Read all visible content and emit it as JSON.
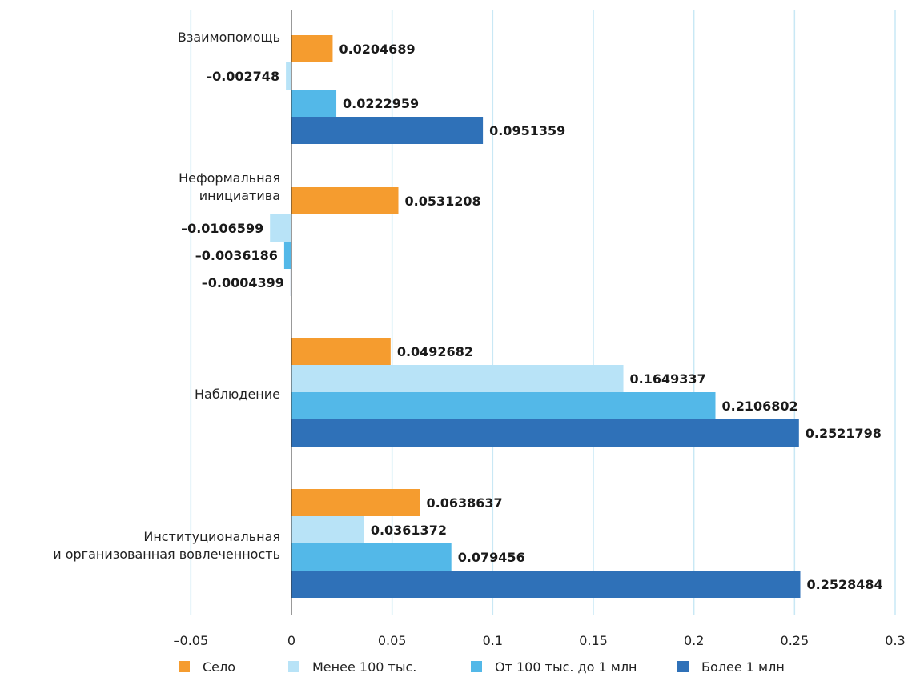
{
  "chart_data": {
    "type": "bar",
    "orientation": "horizontal",
    "categories": [
      [
        "Взаимопомощь"
      ],
      [
        "Неформальная",
        "инициатива"
      ],
      [
        "Наблюдение"
      ],
      [
        "Институциональная",
        "и организованная вовлеченность"
      ]
    ],
    "series": [
      {
        "name": "Село",
        "color": "#f59c2f",
        "values": [
          0.0204689,
          0.0531208,
          0.0492682,
          0.0638637
        ],
        "labels": [
          "0.0204689",
          "0.0531208",
          "0.0492682",
          "0.0638637"
        ]
      },
      {
        "name": "Менее 100 тыс.",
        "color": "#b8e3f7",
        "values": [
          -0.002748,
          -0.0106599,
          0.1649337,
          0.0361372
        ],
        "labels": [
          "–0.002748",
          "–0.0106599",
          "0.1649337",
          "0.0361372"
        ]
      },
      {
        "name": "От 100 тыс. до 1 млн",
        "color": "#53b8e8",
        "values": [
          0.0222959,
          -0.0036186,
          0.2106802,
          0.079456
        ],
        "labels": [
          "0.0222959",
          "–0.0036186",
          "0.2106802",
          "0.079456"
        ]
      },
      {
        "name": "Более 1 млн",
        "color": "#2f71b8",
        "values": [
          0.0951359,
          -0.0004399,
          0.2521798,
          0.2528484
        ],
        "labels": [
          "0.0951359",
          "–0.0004399",
          "0.2521798",
          "0.2528484"
        ]
      }
    ],
    "xlim": [
      -0.05,
      0.3
    ],
    "xticks": [
      -0.05,
      0,
      0.05,
      0.1,
      0.15,
      0.2,
      0.25,
      0.3
    ],
    "xtick_labels": [
      "–0.05",
      "0",
      "0.05",
      "0.1",
      "0.15",
      "0.2",
      "0.25",
      "0.3"
    ],
    "grid": true,
    "legend_position": "bottom",
    "grid_color": "#c9e8f5"
  }
}
